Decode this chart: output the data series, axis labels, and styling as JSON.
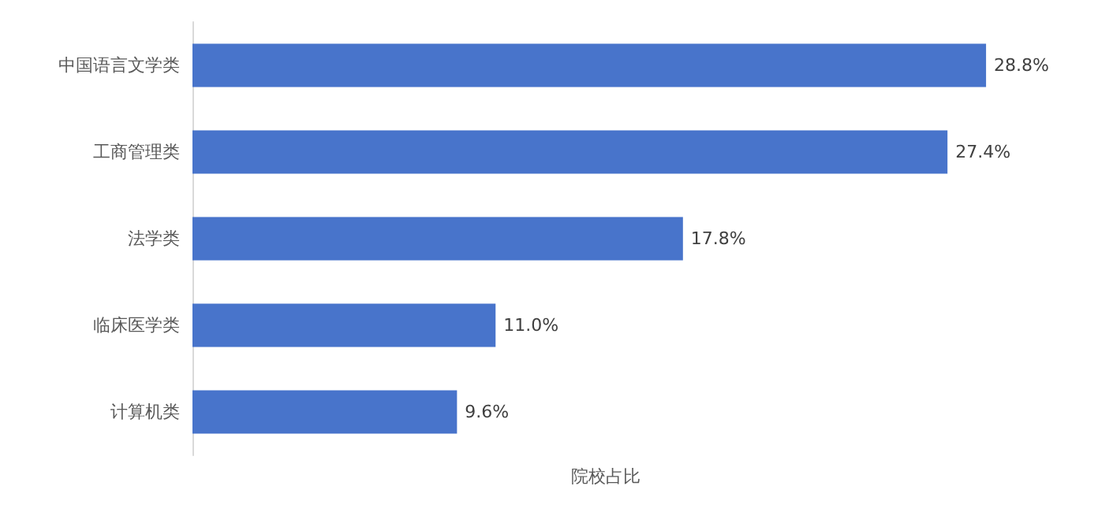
{
  "chart_data": {
    "type": "bar",
    "orientation": "horizontal",
    "xlabel": "院校占比",
    "categories": [
      "中国语言文学类",
      "工商管理类",
      "法学类",
      "临床医学类",
      "计算机类"
    ],
    "values": [
      28.8,
      27.4,
      17.8,
      11.0,
      9.6
    ],
    "value_labels": [
      "28.8%",
      "27.4%",
      "17.8%",
      "11.0%",
      "9.6%"
    ],
    "color": "#4874cb",
    "tick_labels": "y"
  }
}
